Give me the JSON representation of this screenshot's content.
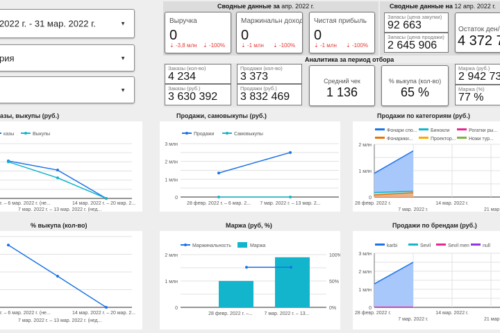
{
  "filters": [
    {
      "value": "2022 г. - 31 мар. 2022 г."
    },
    {
      "value": "рия"
    },
    {
      "value": ""
    }
  ],
  "summary_period": {
    "title_bold": "Сводные данные за",
    "title_rest": "апр. 2022 г.",
    "cards": [
      {
        "label": "Выручка",
        "value": "0",
        "delta_abs": "-3,8 млн",
        "delta_pct": "-100%"
      },
      {
        "label": "Маржинальн доход",
        "value": "0",
        "delta_abs": "-1 млн",
        "delta_pct": "-100%"
      },
      {
        "label": "Чистая прибыль",
        "value": "0",
        "delta_abs": "-1 млн",
        "delta_pct": "-100%"
      }
    ]
  },
  "summary_date": {
    "title_bold": "Сводные данные на",
    "title_rest": "12 апр. 2022 г.",
    "stock_purchase": {
      "label": "Запасы (цена закупки)",
      "value": "92 663"
    },
    "stock_sale": {
      "label": "Запасы (цена продажи)",
      "value": "2 645 906"
    },
    "balance": {
      "label": "Остаток ден/ср",
      "value": "4 372 71"
    }
  },
  "analytics": {
    "title": "Аналитика за период отбора",
    "orders_qty": {
      "label": "Заказы (кол-во)",
      "value": "4 234"
    },
    "orders_rub": {
      "label": "Заказы (руб.)",
      "value": "3 630 392"
    },
    "sales_qty": {
      "label": "Продажи (кол-во)",
      "value": "3 373"
    },
    "sales_rub": {
      "label": "Продажи (руб.)",
      "value": "3 832 469"
    },
    "avg_check": {
      "label": "Средний чек",
      "value": "1 136"
    },
    "buyout_pct": {
      "label": "% выкупа (кол-во)",
      "value": "65 %"
    },
    "margin_rub": {
      "label": "Маржа (руб.)",
      "value": "2 942 73"
    },
    "margin_pct": {
      "label": "Маржа (%)",
      "value": "77 %"
    }
  },
  "chart_data": [
    {
      "id": "orders_buyouts",
      "type": "line",
      "title": "азы, выкупы (руб.)",
      "legend": [
        "казы",
        "Выкупы"
      ],
      "x_labels_top": [
        "г. – 6 мар. 2022 г. (не...",
        "14 мар. 2022 г. – 20 мар. 2..."
      ],
      "x_labels_bottom": [
        "7 мар. 2022 г. – 13 мар. 2022 г. (нед..."
      ],
      "series": [
        {
          "name": "Заказы",
          "color": "#1a73e8",
          "values": [
            0.82,
            0.62,
            0
          ]
        },
        {
          "name": "Выкупы",
          "color": "#12b5cb",
          "values": [
            0.8,
            0.45,
            0
          ]
        }
      ],
      "ylim": [
        0,
        1.2
      ],
      "grid": true
    },
    {
      "id": "sales_selfbuy",
      "type": "line",
      "title": "Продажи, самовыкупы (руб.)",
      "legend": [
        "Продажи",
        "Самовыкупы"
      ],
      "x": [
        "28 февр. 2022 г. – 6 мар. 2...",
        "7 мар. 2022 г. – 13 мар. 2..."
      ],
      "y_ticks": [
        "0",
        "1 млн",
        "2 млн",
        "3 млн"
      ],
      "series": [
        {
          "name": "Продажи",
          "color": "#1a73e8",
          "values": [
            1.35,
            2.5
          ]
        },
        {
          "name": "Самовыкупы",
          "color": "#12b5cb",
          "values": [
            0,
            0
          ]
        }
      ],
      "ylim": [
        0,
        3
      ],
      "ylabel_unit": "млн",
      "grid": true
    },
    {
      "id": "sales_by_category",
      "type": "area",
      "title": "Продажи по категориям (руб.)",
      "legend": [
        "Фонари спо...",
        "Бинокли",
        "Рогатки ры...",
        "Фонарики...",
        "Проектор...",
        "Ножи тур..."
      ],
      "legend_colors": [
        "#1a73e8",
        "#12b5cb",
        "#e52592",
        "#e8710a",
        "#f9ab00",
        "#7cb342"
      ],
      "x_labels_top": [
        "28 февр. 2022 г.",
        "14 мар. 2022 г."
      ],
      "x_labels_bottom": [
        "7 мар. 2022 г.",
        "21 мар. 202"
      ],
      "y_ticks": [
        "0",
        "1 млн",
        "2 млн"
      ],
      "series": [
        {
          "name": "Фонари спо...",
          "values": [
            0.9,
            1.75
          ]
        },
        {
          "name": "Бинокли",
          "values": [
            0.17,
            0.22
          ]
        },
        {
          "name": "Рогатки ры...",
          "values": [
            0.03,
            0.04
          ]
        },
        {
          "name": "Фонарики...",
          "values": [
            0.08,
            0.16
          ]
        }
      ],
      "ylim": [
        0,
        2
      ],
      "grid": true
    },
    {
      "id": "buyout_pct",
      "type": "line",
      "title": "% выкупа (кол-во)",
      "x_labels_top": [
        "г. – 6 мар. 2022 г. (не...",
        "14 мар. 2022 г. – 20 мар. 2..."
      ],
      "x_labels_bottom": [
        "7 мар. 2022 г. – 13 мар. 2022 г. (нед..."
      ],
      "series": [
        {
          "name": "% выкупа",
          "color": "#1a73e8",
          "values": [
            0.88,
            0.44,
            0
          ]
        }
      ],
      "ylim": [
        0,
        1.0
      ],
      "grid": true
    },
    {
      "id": "margin",
      "type": "bar",
      "title": "Маржа (руб, %)",
      "legend": [
        "Маржинальность",
        "Маржа"
      ],
      "categories": [
        "28 февр. 2022 г. –...",
        "7 мар. 2022 г. – 13..."
      ],
      "y_ticks_left": [
        "0",
        "1 млн",
        "2 млн"
      ],
      "y_ticks_right": [
        "0%",
        "50%",
        "100%"
      ],
      "series": [
        {
          "name": "Маржа",
          "type": "bar",
          "color": "#12b5cb",
          "values": [
            1.0,
            1.9
          ]
        },
        {
          "name": "Маржинальность",
          "type": "line",
          "color": "#1a73e8",
          "values": [
            76,
            76
          ]
        }
      ],
      "ylim": [
        0,
        2
      ],
      "ylim_right": [
        0,
        100
      ]
    },
    {
      "id": "sales_by_brand",
      "type": "area",
      "title": "Продажи по брендам (руб.)",
      "legend": [
        "karbi",
        "Sevil",
        "Sevil men",
        "null"
      ],
      "legend_colors": [
        "#1a73e8",
        "#12b5cb",
        "#e52592",
        "#9334e6"
      ],
      "x_labels_top": [
        "28 февр. 2022 г.",
        "14 мар. 2022 г."
      ],
      "x_labels_bottom": [
        "7 мар. 2022 г.",
        "21 мар. 202"
      ],
      "y_ticks": [
        "0",
        "1 млн",
        "2 млн",
        "3 млн"
      ],
      "series": [
        {
          "name": "karbi",
          "values": [
            1.3,
            2.5
          ]
        }
      ],
      "ylim": [
        0,
        3
      ],
      "grid": true
    }
  ]
}
